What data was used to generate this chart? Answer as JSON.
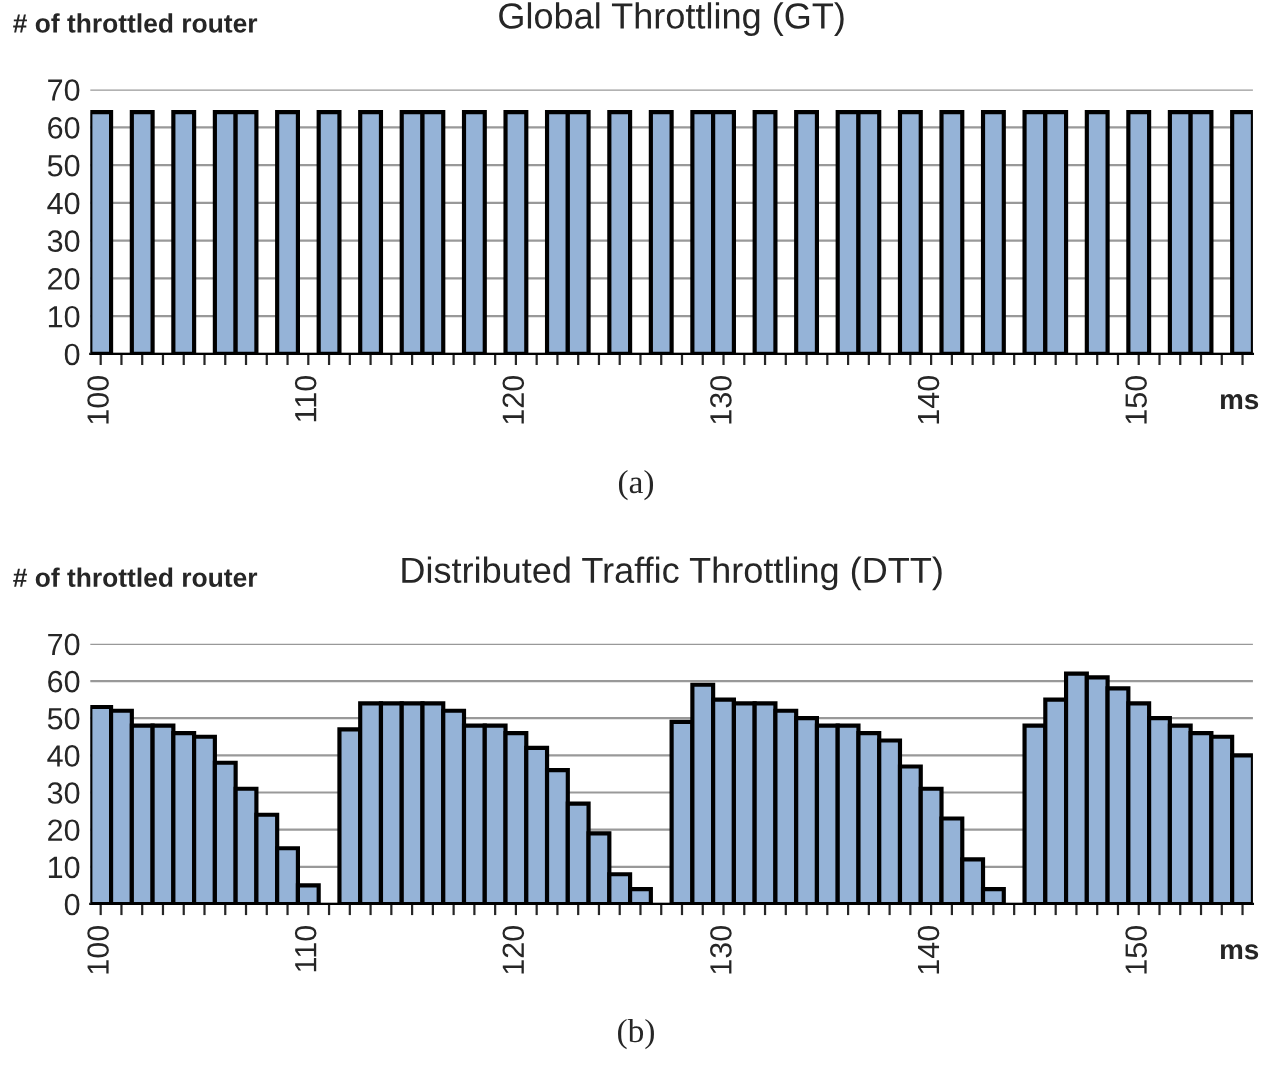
{
  "chart_data": [
    {
      "type": "bar",
      "title": "Global Throttling (GT)",
      "ylabel": "# of throttled router",
      "xlabel": "ms",
      "annotations": [
        "(a)"
      ],
      "categories": [
        "100",
        null,
        null,
        null,
        null,
        null,
        null,
        null,
        null,
        null,
        "110",
        null,
        null,
        null,
        null,
        null,
        null,
        null,
        null,
        null,
        "120",
        null,
        null,
        null,
        null,
        null,
        null,
        null,
        null,
        null,
        "130",
        null,
        null,
        null,
        null,
        null,
        null,
        null,
        null,
        null,
        "140",
        null,
        null,
        null,
        null,
        null,
        null,
        null,
        null,
        null,
        "150",
        null,
        null,
        null,
        null,
        null
      ],
      "values": [
        64,
        null,
        64,
        null,
        64,
        null,
        64,
        64,
        null,
        64,
        null,
        64,
        null,
        64,
        null,
        64,
        64,
        null,
        64,
        null,
        64,
        null,
        64,
        64,
        null,
        64,
        null,
        64,
        null,
        64,
        64,
        null,
        64,
        null,
        64,
        null,
        64,
        64,
        null,
        64,
        null,
        64,
        null,
        64,
        null,
        64,
        64,
        null,
        64,
        null,
        64,
        null,
        64,
        64,
        null,
        64
      ],
      "color": "#95b3d7",
      "ylim": [
        0,
        70
      ],
      "yticks": [
        0,
        10,
        20,
        30,
        40,
        50,
        60,
        70
      ],
      "grid": "y"
    },
    {
      "type": "bar",
      "title": "Distributed Traffic Throttling (DTT)",
      "ylabel": "# of throttled router",
      "xlabel": "ms",
      "annotations": [
        "(b)"
      ],
      "categories": [
        "100",
        null,
        null,
        null,
        null,
        null,
        null,
        null,
        null,
        null,
        "110",
        null,
        null,
        null,
        null,
        null,
        null,
        null,
        null,
        null,
        "120",
        null,
        null,
        null,
        null,
        null,
        null,
        null,
        null,
        null,
        "130",
        null,
        null,
        null,
        null,
        null,
        null,
        null,
        null,
        null,
        "140",
        null,
        null,
        null,
        null,
        null,
        null,
        null,
        null,
        null,
        "150",
        null,
        null,
        null,
        null,
        null
      ],
      "values": [
        53,
        52,
        48,
        48,
        46,
        45,
        38,
        31,
        24,
        15,
        5,
        null,
        47,
        54,
        54,
        54,
        54,
        52,
        48,
        48,
        46,
        42,
        36,
        27,
        19,
        8,
        4,
        null,
        49,
        59,
        55,
        54,
        54,
        52,
        50,
        48,
        48,
        46,
        44,
        37,
        31,
        23,
        12,
        4,
        null,
        48,
        55,
        62,
        61,
        58,
        54,
        50,
        48,
        46,
        45,
        40
      ],
      "color": "#95b3d7",
      "ylim": [
        0,
        70
      ],
      "yticks": [
        0,
        10,
        20,
        30,
        40,
        50,
        60,
        70
      ],
      "grid": "y"
    }
  ]
}
